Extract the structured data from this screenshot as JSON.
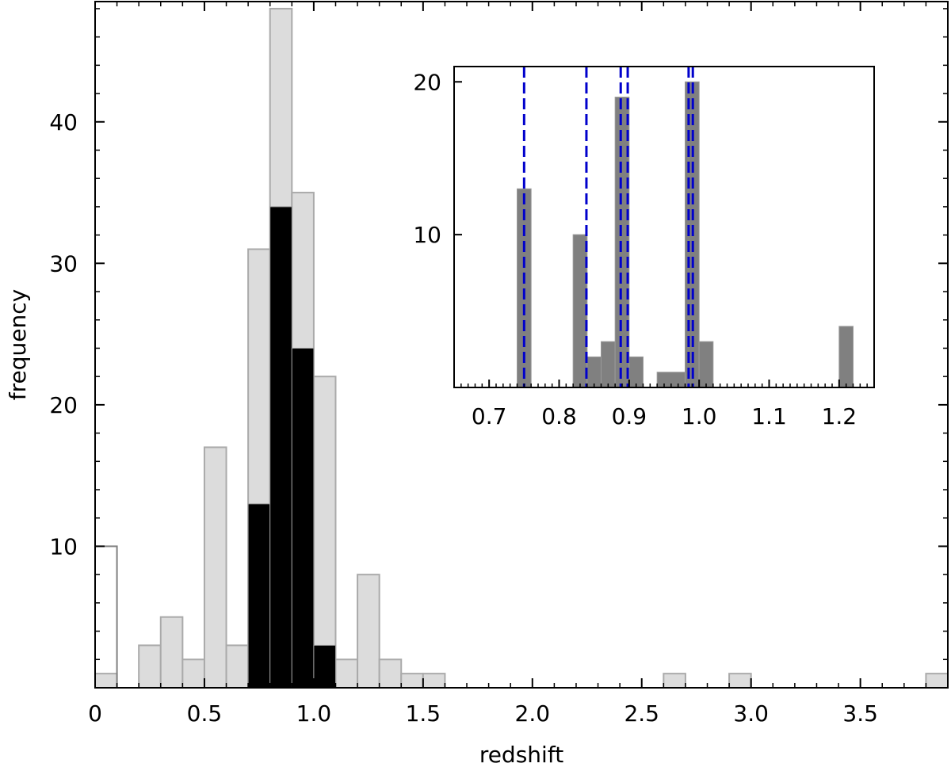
{
  "chart_data": [
    {
      "id": "main",
      "type": "bar",
      "subtype": "histogram",
      "xlabel": "redshift",
      "ylabel": "frequency",
      "xlim": [
        0,
        3.9
      ],
      "ylim": [
        0,
        48.5
      ],
      "bin_width": 0.1,
      "x_ticks": [
        "0",
        "0.5",
        "1.0",
        "1.5",
        "2.0",
        "2.5",
        "3.0",
        "3.5"
      ],
      "x_tick_values": [
        0,
        0.5,
        1.0,
        1.5,
        2.0,
        2.5,
        3.0,
        3.5
      ],
      "y_ticks": [
        "10",
        "20",
        "30",
        "40"
      ],
      "y_tick_values": [
        10,
        20,
        30,
        40
      ],
      "grid": false,
      "series": [
        {
          "style": "open",
          "color": "#808080",
          "bins": [
            {
              "x0": 0.0,
              "x1": 0.1,
              "count": 10
            }
          ]
        },
        {
          "style": "light-gray",
          "color": "#dcdcdc",
          "edge": "#aaaaaa",
          "bins": [
            {
              "x0": 0.0,
              "x1": 0.1,
              "count": 1
            },
            {
              "x0": 0.2,
              "x1": 0.3,
              "count": 3
            },
            {
              "x0": 0.3,
              "x1": 0.4,
              "count": 5
            },
            {
              "x0": 0.4,
              "x1": 0.5,
              "count": 2
            },
            {
              "x0": 0.5,
              "x1": 0.6,
              "count": 17
            },
            {
              "x0": 0.6,
              "x1": 0.7,
              "count": 3
            },
            {
              "x0": 0.7,
              "x1": 0.8,
              "count": 31
            },
            {
              "x0": 0.8,
              "x1": 0.9,
              "count": 48
            },
            {
              "x0": 0.9,
              "x1": 1.0,
              "count": 35
            },
            {
              "x0": 1.0,
              "x1": 1.1,
              "count": 22
            },
            {
              "x0": 1.1,
              "x1": 1.2,
              "count": 2
            },
            {
              "x0": 1.2,
              "x1": 1.3,
              "count": 8
            },
            {
              "x0": 1.3,
              "x1": 1.4,
              "count": 2
            },
            {
              "x0": 1.4,
              "x1": 1.5,
              "count": 1
            },
            {
              "x0": 1.5,
              "x1": 1.6,
              "count": 1
            },
            {
              "x0": 2.6,
              "x1": 2.7,
              "count": 1
            },
            {
              "x0": 2.9,
              "x1": 3.0,
              "count": 1
            },
            {
              "x0": 3.8,
              "x1": 3.9,
              "count": 1
            }
          ]
        },
        {
          "style": "black",
          "color": "#000000",
          "bins": [
            {
              "x0": 0.7,
              "x1": 0.8,
              "count": 13
            },
            {
              "x0": 0.8,
              "x1": 0.9,
              "count": 34
            },
            {
              "x0": 0.9,
              "x1": 1.0,
              "count": 24
            },
            {
              "x0": 1.0,
              "x1": 1.1,
              "count": 3
            }
          ]
        }
      ]
    },
    {
      "id": "inset",
      "type": "bar",
      "subtype": "histogram",
      "xlim": [
        0.65,
        1.25
      ],
      "ylim": [
        0,
        21
      ],
      "x_ticks": [
        "0.7",
        "0.8",
        "0.9",
        "1.0",
        "1.1",
        "1.2"
      ],
      "x_tick_values": [
        0.7,
        0.8,
        0.9,
        1.0,
        1.1,
        1.2
      ],
      "y_ticks": [
        "10",
        "20"
      ],
      "y_tick_values": [
        10,
        20
      ],
      "grid": false,
      "series": [
        {
          "color": "#808080",
          "bins": [
            {
              "x0": 0.74,
              "x1": 0.76,
              "count": 13
            },
            {
              "x0": 0.82,
              "x1": 0.84,
              "count": 10
            },
            {
              "x0": 0.84,
              "x1": 0.86,
              "count": 2
            },
            {
              "x0": 0.86,
              "x1": 0.88,
              "count": 3
            },
            {
              "x0": 0.88,
              "x1": 0.9,
              "count": 19
            },
            {
              "x0": 0.9,
              "x1": 0.92,
              "count": 2
            },
            {
              "x0": 0.94,
              "x1": 0.98,
              "count": 1
            },
            {
              "x0": 0.98,
              "x1": 1.0,
              "count": 20
            },
            {
              "x0": 1.0,
              "x1": 1.02,
              "count": 3
            },
            {
              "x0": 1.2,
              "x1": 1.22,
              "count": 4
            }
          ]
        }
      ],
      "reference_lines": {
        "color": "#0000cc",
        "style": "dashed",
        "x": [
          0.75,
          0.839,
          0.888,
          0.898,
          0.985,
          0.991
        ]
      }
    }
  ]
}
